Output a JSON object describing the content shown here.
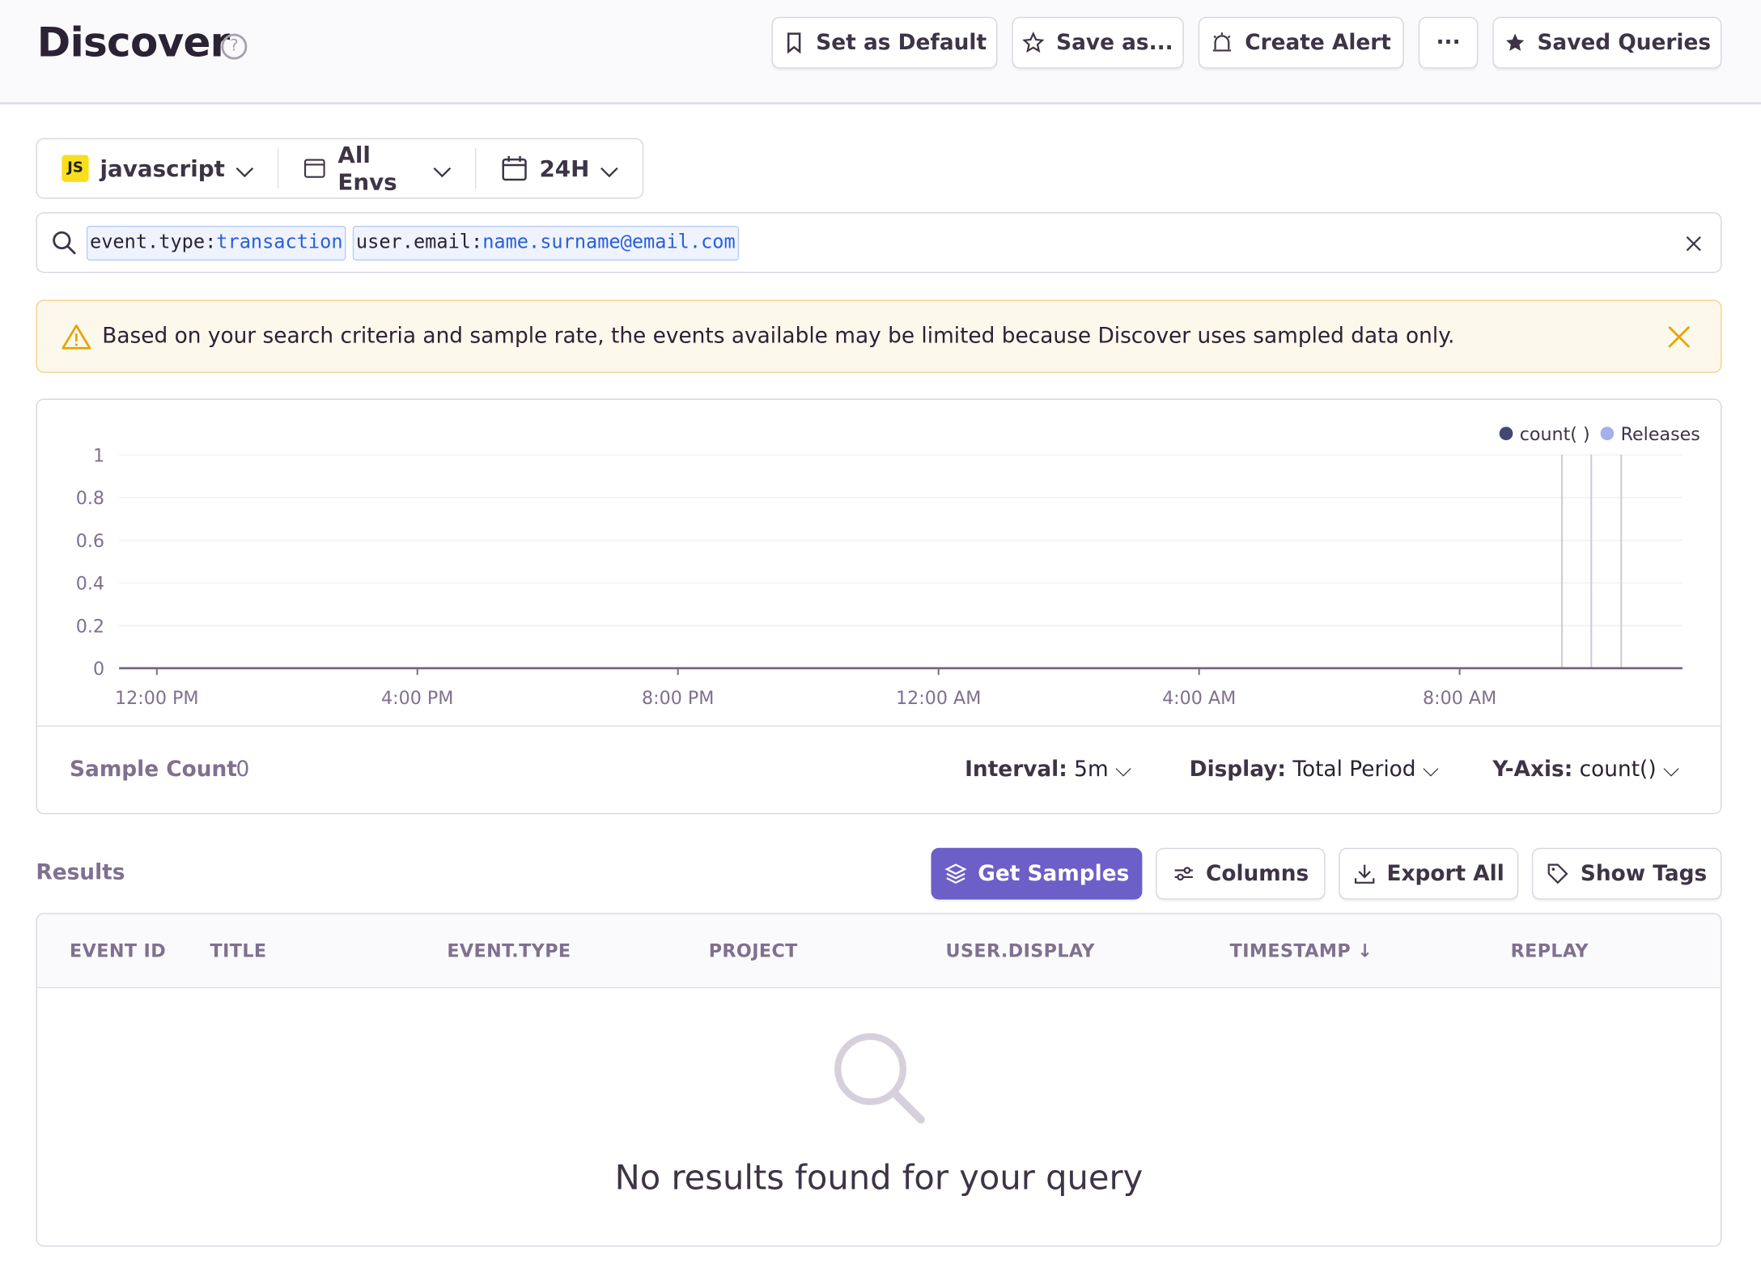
{
  "header": {
    "title": "Discover",
    "help_icon": "question-circle-icon",
    "buttons": {
      "set_default": "Set as Default",
      "save_as": "Save as...",
      "create_alert": "Create Alert",
      "more": "···",
      "saved_queries": "Saved Queries"
    }
  },
  "filters": {
    "project": "javascript",
    "project_badge": "JS",
    "environment": "All Envs",
    "period": "24H"
  },
  "search": {
    "tokens": [
      {
        "key": "event.type:",
        "value": "transaction"
      },
      {
        "key": "user.email:",
        "value": "name.surname@email.com"
      }
    ]
  },
  "alert": {
    "message": "Based on your search criteria and sample rate, the events available may be limited because Discover uses sampled data only.",
    "color": "#f5b000"
  },
  "chart_data": {
    "type": "line",
    "legend": [
      {
        "name": "count( )",
        "color": "#444674"
      },
      {
        "name": "Releases",
        "color": "#a3b1e8"
      }
    ],
    "legend_placement": "top-right",
    "yticks": [
      "0",
      "0.2",
      "0.4",
      "0.6",
      "0.8",
      "1"
    ],
    "ylim": [
      0,
      1
    ],
    "xticks": [
      "12:00 PM",
      "4:00 PM",
      "8:00 PM",
      "12:00 AM",
      "4:00 AM",
      "8:00 AM"
    ],
    "xrange_hours": [
      -0.58,
      23.42
    ],
    "series": [
      {
        "name": "count( )",
        "values": [
          0
        ]
      }
    ],
    "releases_hours_after_noon": [
      21.57,
      22.02,
      22.48
    ],
    "grid": true
  },
  "chart_footer": {
    "sample_label": "Sample Count",
    "sample_value": "0",
    "interval_label": "Interval:",
    "interval_value": "5m",
    "display_label": "Display:",
    "display_value": "Total Period",
    "yaxis_label": "Y-Axis:",
    "yaxis_value": "count()"
  },
  "results": {
    "label": "Results",
    "get_samples": "Get Samples",
    "columns": "Columns",
    "export_all": "Export All",
    "show_tags": "Show Tags",
    "accent": "#6c5fc7"
  },
  "table": {
    "columns": [
      "EVENT ID",
      "TITLE",
      "EVENT.TYPE",
      "PROJECT",
      "USER.DISPLAY",
      "TIMESTAMP",
      "REPLAY"
    ],
    "empty_message": "No results found for your query"
  }
}
